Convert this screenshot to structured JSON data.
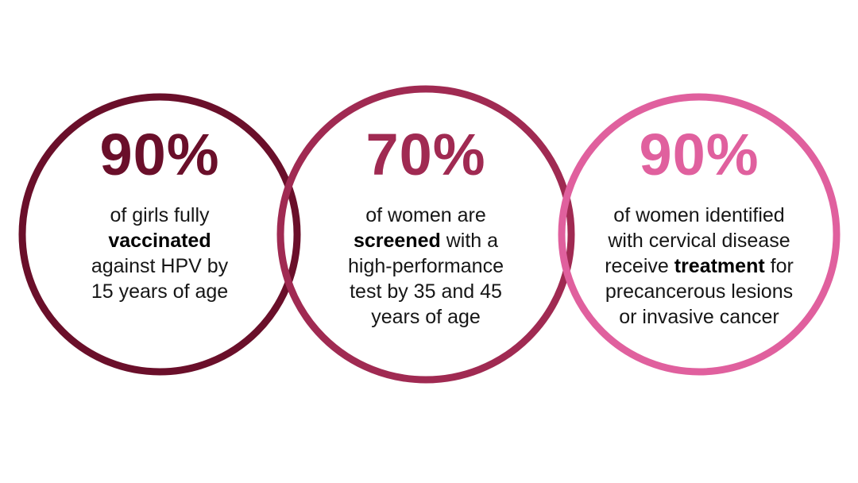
{
  "colors": {
    "target_1": "#6a0f2a",
    "target_2": "#a02a52",
    "target_3": "#e0609e"
  },
  "targets": [
    {
      "value": "90%",
      "lines": [
        [
          "of girls fully"
        ],
        [
          "",
          "vaccinated"
        ],
        [
          "against HPV by"
        ],
        [
          "15 years of age"
        ]
      ]
    },
    {
      "value": "70%",
      "lines": [
        [
          "of women are"
        ],
        [
          "",
          "screened",
          " with a"
        ],
        [
          "high-performance"
        ],
        [
          "test by 35 and 45"
        ],
        [
          "years of age"
        ]
      ]
    },
    {
      "value": "90%",
      "lines": [
        [
          "of women identified"
        ],
        [
          "with cervical disease"
        ],
        [
          "receive ",
          "treatment",
          " for"
        ],
        [
          "precancerous lesions"
        ],
        [
          "or invasive cancer"
        ]
      ]
    }
  ]
}
